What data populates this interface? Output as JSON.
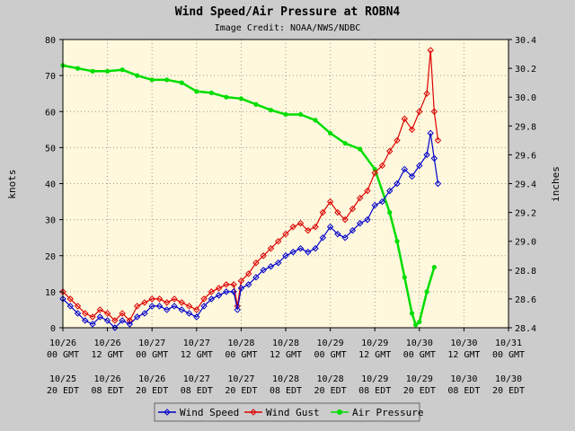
{
  "chart_data": {
    "type": "line",
    "title": "Wind Speed/Air Pressure at ROBN4",
    "subtitle": "Image Credit: NOAA/NWS/NDBC",
    "ylabel_left": "knots",
    "ylabel_right": "inches",
    "ylim_left": [
      0,
      80
    ],
    "ylim_right": [
      28.4,
      30.4
    ],
    "yticks_left": [
      "0",
      "10",
      "20",
      "30",
      "40",
      "50",
      "60",
      "70",
      "80"
    ],
    "yticks_right": [
      "28.4",
      "28.6",
      "28.8",
      "29.0",
      "29.2",
      "29.4",
      "29.6",
      "29.8",
      "30.0",
      "30.2",
      "30.4"
    ],
    "x_hours_range": [
      0,
      120
    ],
    "x_ticks": [
      {
        "h": 0,
        "gmt_date": "10/26",
        "gmt_time": "00 GMT",
        "edt_date": "10/25",
        "edt_time": "20 EDT"
      },
      {
        "h": 12,
        "gmt_date": "10/26",
        "gmt_time": "12 GMT",
        "edt_date": "10/26",
        "edt_time": "08 EDT"
      },
      {
        "h": 24,
        "gmt_date": "10/27",
        "gmt_time": "00 GMT",
        "edt_date": "10/26",
        "edt_time": "20 EDT"
      },
      {
        "h": 36,
        "gmt_date": "10/27",
        "gmt_time": "12 GMT",
        "edt_date": "10/27",
        "edt_time": "08 EDT"
      },
      {
        "h": 48,
        "gmt_date": "10/28",
        "gmt_time": "00 GMT",
        "edt_date": "10/27",
        "edt_time": "20 EDT"
      },
      {
        "h": 60,
        "gmt_date": "10/28",
        "gmt_time": "12 GMT",
        "edt_date": "10/28",
        "edt_time": "08 EDT"
      },
      {
        "h": 72,
        "gmt_date": "10/29",
        "gmt_time": "00 GMT",
        "edt_date": "10/28",
        "edt_time": "20 EDT"
      },
      {
        "h": 84,
        "gmt_date": "10/29",
        "gmt_time": "12 GMT",
        "edt_date": "10/29",
        "edt_time": "08 EDT"
      },
      {
        "h": 96,
        "gmt_date": "10/30",
        "gmt_time": "00 GMT",
        "edt_date": "10/29",
        "edt_time": "20 EDT"
      },
      {
        "h": 108,
        "gmt_date": "10/30",
        "gmt_time": "12 GMT",
        "edt_date": "10/30",
        "edt_time": "08 EDT"
      },
      {
        "h": 120,
        "gmt_date": "10/31",
        "gmt_time": "00 GMT",
        "edt_date": "10/30",
        "edt_time": "20 EDT"
      }
    ],
    "grid": true,
    "legend_position": "bottom-center",
    "series": [
      {
        "name": "Wind Speed",
        "axis": "left",
        "color": "#0000cc",
        "points": [
          [
            0,
            8
          ],
          [
            2,
            6
          ],
          [
            4,
            4
          ],
          [
            6,
            2
          ],
          [
            8,
            1
          ],
          [
            10,
            3
          ],
          [
            12,
            2
          ],
          [
            14,
            0
          ],
          [
            16,
            2
          ],
          [
            18,
            1
          ],
          [
            20,
            3
          ],
          [
            22,
            4
          ],
          [
            24,
            6
          ],
          [
            26,
            6
          ],
          [
            28,
            5
          ],
          [
            30,
            6
          ],
          [
            32,
            5
          ],
          [
            34,
            4
          ],
          [
            36,
            3
          ],
          [
            38,
            6
          ],
          [
            40,
            8
          ],
          [
            42,
            9
          ],
          [
            44,
            10
          ],
          [
            46,
            10
          ],
          [
            47,
            5
          ],
          [
            48,
            11
          ],
          [
            50,
            12
          ],
          [
            52,
            14
          ],
          [
            54,
            16
          ],
          [
            56,
            17
          ],
          [
            58,
            18
          ],
          [
            60,
            20
          ],
          [
            62,
            21
          ],
          [
            64,
            22
          ],
          [
            66,
            21
          ],
          [
            68,
            22
          ],
          [
            70,
            25
          ],
          [
            72,
            28
          ],
          [
            74,
            26
          ],
          [
            76,
            25
          ],
          [
            78,
            27
          ],
          [
            80,
            29
          ],
          [
            82,
            30
          ],
          [
            84,
            34
          ],
          [
            86,
            35
          ],
          [
            88,
            38
          ],
          [
            90,
            40
          ],
          [
            92,
            44
          ],
          [
            94,
            42
          ],
          [
            96,
            45
          ],
          [
            98,
            48
          ],
          [
            99,
            54
          ],
          [
            100,
            47
          ],
          [
            101,
            40
          ]
        ]
      },
      {
        "name": "Wind Gust",
        "axis": "left",
        "color": "#dd0000",
        "points": [
          [
            0,
            10
          ],
          [
            2,
            8
          ],
          [
            4,
            6
          ],
          [
            6,
            4
          ],
          [
            8,
            3
          ],
          [
            10,
            5
          ],
          [
            12,
            4
          ],
          [
            14,
            2
          ],
          [
            16,
            4
          ],
          [
            18,
            2
          ],
          [
            20,
            6
          ],
          [
            22,
            7
          ],
          [
            24,
            8
          ],
          [
            26,
            8
          ],
          [
            28,
            7
          ],
          [
            30,
            8
          ],
          [
            32,
            7
          ],
          [
            34,
            6
          ],
          [
            36,
            5
          ],
          [
            38,
            8
          ],
          [
            40,
            10
          ],
          [
            42,
            11
          ],
          [
            44,
            12
          ],
          [
            46,
            12
          ],
          [
            47,
            6
          ],
          [
            48,
            13
          ],
          [
            50,
            15
          ],
          [
            52,
            18
          ],
          [
            54,
            20
          ],
          [
            56,
            22
          ],
          [
            58,
            24
          ],
          [
            60,
            26
          ],
          [
            62,
            28
          ],
          [
            64,
            29
          ],
          [
            66,
            27
          ],
          [
            68,
            28
          ],
          [
            70,
            32
          ],
          [
            72,
            35
          ],
          [
            74,
            32
          ],
          [
            76,
            30
          ],
          [
            78,
            33
          ],
          [
            80,
            36
          ],
          [
            82,
            38
          ],
          [
            84,
            43
          ],
          [
            86,
            45
          ],
          [
            88,
            49
          ],
          [
            90,
            52
          ],
          [
            92,
            58
          ],
          [
            94,
            55
          ],
          [
            96,
            60
          ],
          [
            98,
            65
          ],
          [
            99,
            77
          ],
          [
            100,
            60
          ],
          [
            101,
            52
          ]
        ]
      },
      {
        "name": "Air Pressure",
        "axis": "right",
        "color": "#00dd00",
        "points": [
          [
            0,
            30.22
          ],
          [
            4,
            30.2
          ],
          [
            8,
            30.18
          ],
          [
            12,
            30.18
          ],
          [
            16,
            30.19
          ],
          [
            20,
            30.15
          ],
          [
            24,
            30.12
          ],
          [
            28,
            30.12
          ],
          [
            32,
            30.1
          ],
          [
            36,
            30.04
          ],
          [
            40,
            30.03
          ],
          [
            44,
            30.0
          ],
          [
            48,
            29.99
          ],
          [
            52,
            29.95
          ],
          [
            56,
            29.91
          ],
          [
            60,
            29.88
          ],
          [
            64,
            29.88
          ],
          [
            68,
            29.84
          ],
          [
            72,
            29.75
          ],
          [
            76,
            29.68
          ],
          [
            80,
            29.64
          ],
          [
            84,
            29.5
          ],
          [
            88,
            29.2
          ],
          [
            90,
            29.0
          ],
          [
            92,
            28.75
          ],
          [
            94,
            28.5
          ],
          [
            95,
            28.42
          ],
          [
            96,
            28.44
          ],
          [
            98,
            28.65
          ],
          [
            100,
            28.82
          ]
        ]
      }
    ]
  }
}
